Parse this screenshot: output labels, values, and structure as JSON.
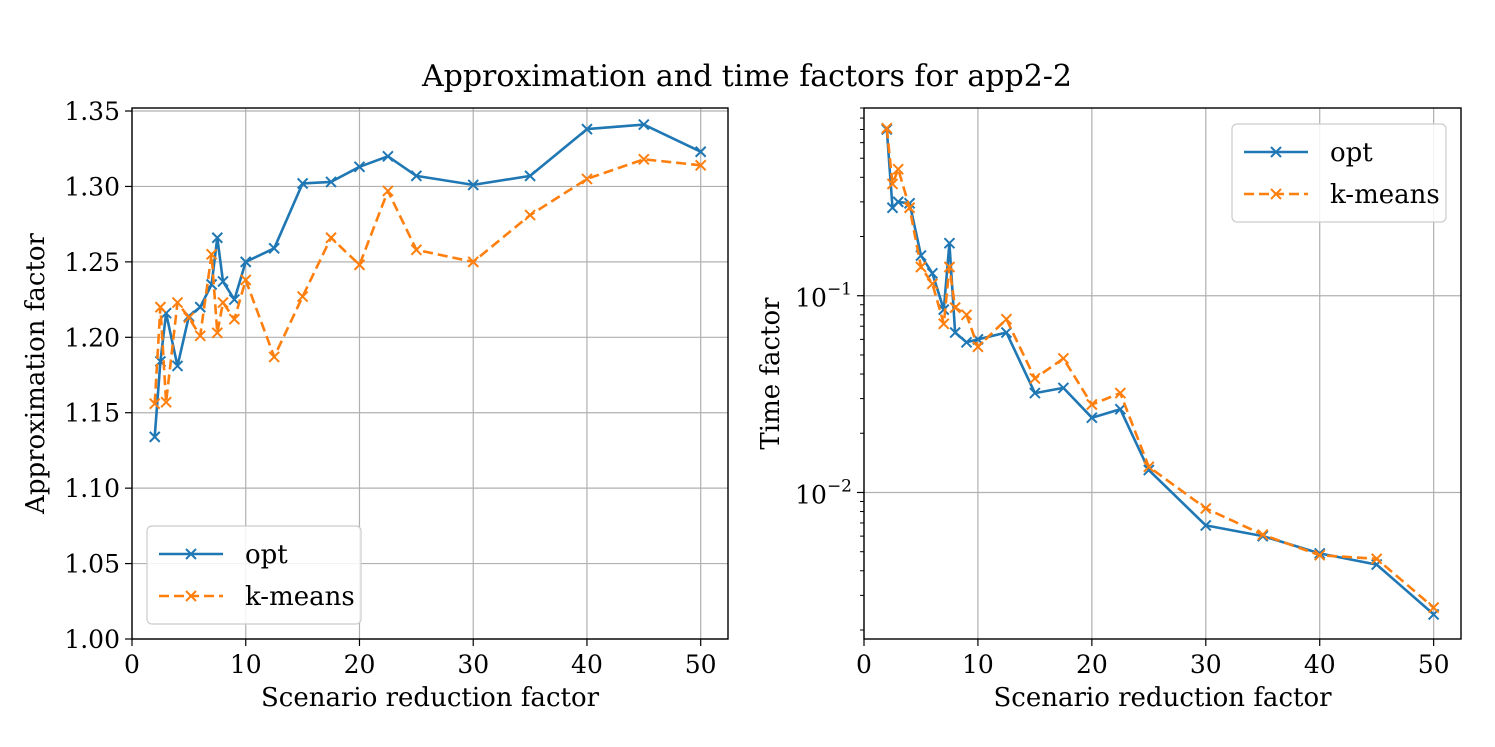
{
  "figure": {
    "title": "Approximation and time factors for app2-2"
  },
  "chart_data": [
    {
      "type": "line",
      "title": "",
      "xlabel": "Scenario reduction factor",
      "ylabel": "Approximation factor",
      "xlim": [
        0,
        52.4
      ],
      "ylim": [
        1.0,
        1.352
      ],
      "yscale": "linear",
      "grid": true,
      "legend": {
        "position": "lower-left"
      },
      "xticks": [
        0,
        10,
        20,
        30,
        40,
        50
      ],
      "xtick_labels": [
        "0",
        "10",
        "20",
        "30",
        "40",
        "50"
      ],
      "yticks": [
        1.0,
        1.05,
        1.1,
        1.15,
        1.2,
        1.25,
        1.3,
        1.35
      ],
      "ytick_labels": [
        "1.00",
        "1.05",
        "1.10",
        "1.15",
        "1.20",
        "1.25",
        "1.30",
        "1.35"
      ],
      "series": [
        {
          "name": "opt",
          "color": "#1f77b4",
          "style": "solid",
          "marker": "x",
          "x": [
            2,
            2.5,
            3,
            4,
            5,
            6,
            7,
            7.5,
            8,
            9,
            10,
            12.5,
            15,
            17.5,
            20,
            22.5,
            25,
            30,
            35,
            40,
            45,
            50
          ],
          "y": [
            1.134,
            1.184,
            1.216,
            1.181,
            1.214,
            1.22,
            1.235,
            1.266,
            1.237,
            1.225,
            1.25,
            1.259,
            1.302,
            1.303,
            1.313,
            1.32,
            1.307,
            1.301,
            1.307,
            1.338,
            1.341,
            1.323
          ]
        },
        {
          "name": "k-means",
          "color": "#ff7f0e",
          "style": "dashed",
          "marker": "x",
          "x": [
            2,
            2.5,
            3,
            4,
            5,
            6,
            7,
            7.5,
            8,
            9,
            10,
            12.5,
            15,
            17.5,
            20,
            22.5,
            25,
            30,
            35,
            40,
            45,
            50
          ],
          "y": [
            1.156,
            1.22,
            1.157,
            1.223,
            1.213,
            1.201,
            1.255,
            1.203,
            1.223,
            1.212,
            1.238,
            1.187,
            1.227,
            1.266,
            1.248,
            1.297,
            1.258,
            1.25,
            1.281,
            1.305,
            1.318,
            1.314
          ]
        }
      ]
    },
    {
      "type": "line",
      "title": "",
      "xlabel": "Scenario reduction factor",
      "ylabel": "Time factor",
      "xlim": [
        0,
        52.4
      ],
      "ylim": [
        0.0018,
        0.9
      ],
      "yscale": "log",
      "grid": true,
      "legend": {
        "position": "upper-right"
      },
      "xticks": [
        0,
        10,
        20,
        30,
        40,
        50
      ],
      "xtick_labels": [
        "0",
        "10",
        "20",
        "30",
        "40",
        "50"
      ],
      "yticks_major": [
        0.01,
        0.1
      ],
      "ytick_labels": [
        {
          "base": "10",
          "exp": "−2"
        },
        {
          "base": "10",
          "exp": "−1"
        }
      ],
      "series": [
        {
          "name": "opt",
          "color": "#1f77b4",
          "style": "solid",
          "marker": "x",
          "x": [
            2,
            2.5,
            3,
            4,
            5,
            6,
            7,
            7.5,
            8,
            9,
            10,
            12.5,
            15,
            17.5,
            20,
            22.5,
            25,
            30,
            35,
            40,
            45,
            50
          ],
          "y": [
            0.7,
            0.28,
            0.3,
            0.295,
            0.16,
            0.13,
            0.085,
            0.185,
            0.065,
            0.058,
            0.06,
            0.065,
            0.032,
            0.034,
            0.024,
            0.0265,
            0.013,
            0.0068,
            0.006,
            0.0049,
            0.0043,
            0.0024
          ]
        },
        {
          "name": "k-means",
          "color": "#ff7f0e",
          "style": "dashed",
          "marker": "x",
          "x": [
            2,
            2.5,
            3,
            4,
            5,
            6,
            7,
            7.5,
            8,
            9,
            10,
            12.5,
            15,
            17.5,
            20,
            22.5,
            25,
            30,
            35,
            40,
            45,
            50
          ],
          "y": [
            0.71,
            0.37,
            0.44,
            0.28,
            0.14,
            0.115,
            0.072,
            0.14,
            0.087,
            0.08,
            0.055,
            0.076,
            0.038,
            0.048,
            0.028,
            0.032,
            0.0135,
            0.0083,
            0.0061,
            0.0048,
            0.0046,
            0.0026
          ]
        }
      ]
    }
  ]
}
